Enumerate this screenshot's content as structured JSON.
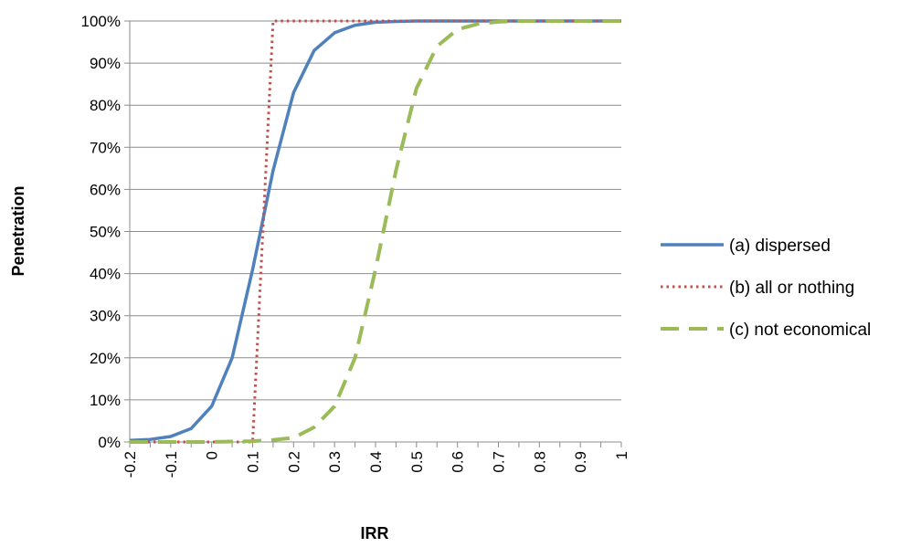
{
  "chart_data": {
    "type": "line",
    "title": "",
    "xlabel": "IRR",
    "ylabel": "Penetration",
    "xlim": [
      -0.2,
      1
    ],
    "ylim": [
      0,
      1
    ],
    "xticks": [
      -0.2,
      -0.1,
      0,
      0.1,
      0.2,
      0.3,
      0.4,
      0.5,
      0.6,
      0.7,
      0.8,
      0.9,
      1
    ],
    "xtick_labels": [
      "-0.2",
      "-0.1",
      "0",
      "0.1",
      "0.2",
      "0.3",
      "0.4",
      "0.5",
      "0.6",
      "0.7",
      "0.8",
      "0.9",
      "1"
    ],
    "yticks": [
      0,
      0.1,
      0.2,
      0.3,
      0.4,
      0.5,
      0.6,
      0.7,
      0.8,
      0.9,
      1
    ],
    "ytick_labels": [
      "0%",
      "10%",
      "20%",
      "30%",
      "40%",
      "50%",
      "60%",
      "70%",
      "80%",
      "90%",
      "100%"
    ],
    "grid": "horizontal",
    "legend_position": "right",
    "series": [
      {
        "name": "(a) dispersed",
        "color": "#4F81BD",
        "style": "solid",
        "x": [
          -0.2,
          -0.15,
          -0.1,
          -0.05,
          0,
          0.05,
          0.1,
          0.15,
          0.2,
          0.25,
          0.3,
          0.35,
          0.4,
          0.45,
          0.5,
          0.55,
          0.6,
          0.65,
          0.7,
          0.75,
          0.8,
          0.85,
          0.9,
          0.95,
          1
        ],
        "y": [
          0.004,
          0.006,
          0.013,
          0.032,
          0.085,
          0.2,
          0.41,
          0.645,
          0.83,
          0.93,
          0.972,
          0.99,
          0.997,
          0.999,
          1,
          1,
          1,
          1,
          1,
          1,
          1,
          1,
          1,
          1,
          1
        ]
      },
      {
        "name": "(b) all or nothing",
        "color": "#C0504D",
        "style": "dotted",
        "x": [
          -0.2,
          -0.15,
          -0.1,
          -0.05,
          0,
          0.05,
          0.1,
          0.15,
          0.2,
          0.25,
          0.3,
          0.35,
          0.4,
          0.45,
          0.5,
          0.55,
          0.6,
          0.65,
          0.7,
          0.75,
          0.8,
          0.85,
          0.9,
          0.95,
          1
        ],
        "y": [
          0,
          0,
          0,
          0,
          0,
          0,
          0,
          1,
          1,
          1,
          1,
          1,
          1,
          1,
          1,
          1,
          1,
          1,
          1,
          1,
          1,
          1,
          1,
          1,
          1
        ]
      },
      {
        "name": "(c) not economical",
        "color": "#9BBB59",
        "style": "dashed",
        "x": [
          -0.2,
          -0.15,
          -0.1,
          -0.05,
          0,
          0.05,
          0.1,
          0.15,
          0.2,
          0.25,
          0.3,
          0.35,
          0.4,
          0.45,
          0.5,
          0.55,
          0.6,
          0.65,
          0.7,
          0.75,
          0.8,
          0.85,
          0.9,
          0.95,
          1
        ],
        "y": [
          0,
          0,
          0,
          0,
          0,
          0.001,
          0.002,
          0.005,
          0.01,
          0.035,
          0.085,
          0.2,
          0.41,
          0.645,
          0.84,
          0.94,
          0.98,
          0.993,
          0.998,
          1,
          1,
          1,
          1,
          1,
          1
        ]
      }
    ]
  }
}
